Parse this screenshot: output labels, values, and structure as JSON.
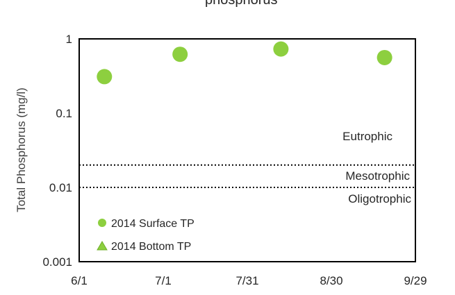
{
  "chart_data": {
    "type": "scatter",
    "title": "phosphorus",
    "xlabel": "",
    "ylabel": "Total Phosphorus (mg/l)",
    "x_ticks": [
      "6/1",
      "7/1",
      "7/31",
      "8/30",
      "9/29"
    ],
    "y_ticks": [
      "0.001",
      "0.01",
      "0.1",
      "1"
    ],
    "y_scale": "log",
    "xlim": [
      "6/1",
      "9/29"
    ],
    "ylim": [
      0.001,
      1
    ],
    "grid": false,
    "series": [
      {
        "name": "2014 Surface TP",
        "marker": "circle",
        "color": "#8DCF3F",
        "points": [
          {
            "x": "6/10",
            "y": 0.31
          },
          {
            "x": "7/7",
            "y": 0.62
          },
          {
            "x": "8/12",
            "y": 0.73
          },
          {
            "x": "9/18",
            "y": 0.56
          }
        ]
      },
      {
        "name": "2014 Bottom TP",
        "marker": "triangle",
        "color": "#8DCF3F",
        "points": []
      }
    ],
    "thresholds": [
      {
        "y": 0.02,
        "style": "dotted"
      },
      {
        "y": 0.01,
        "style": "dotted"
      }
    ],
    "zone_labels": [
      "Eutrophic",
      "Mesotrophic",
      "Oligotrophic"
    ],
    "legend_position": "bottom-left"
  }
}
